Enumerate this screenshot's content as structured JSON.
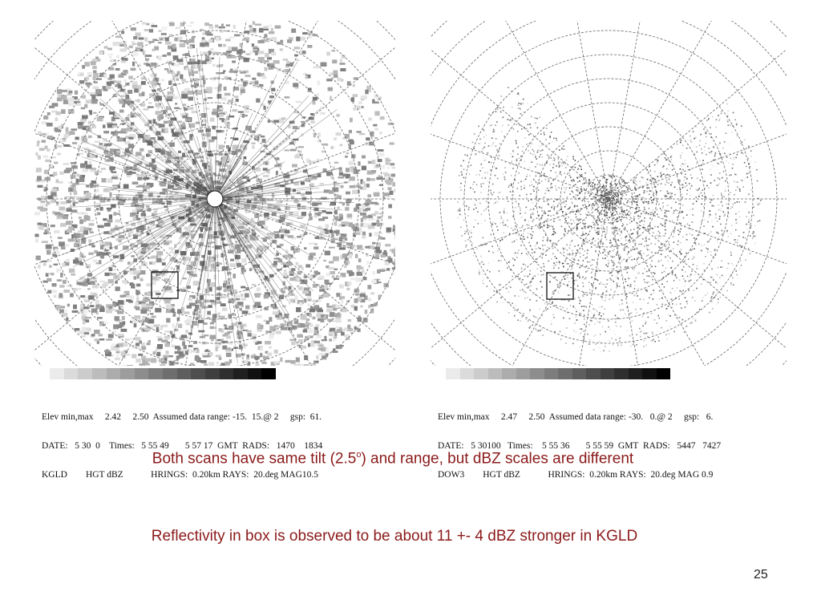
{
  "slide": {
    "page_number": "25",
    "note_1": {
      "before": "Both scans have same tilt (2.5",
      "sup": "o",
      "after": ") and range, but dBZ scales are different"
    },
    "note_2": "Reflectivity in box is observed to be about 11 +- 4 dBZ stronger in KGLD"
  },
  "left_panel": {
    "radar": "KGLD",
    "caption": [
      "Elev min,max     2.42     2.50  Assumed data range: -15.  15.@ 2     gsp:  61.",
      "DATE:   5 30  0    Times:   5 55 49       5 57 17  GMT  RADS:   1470    1834",
      "KGLD        HGT dBZ            HRINGS:  0.20km RAYS:  20.deg MAG10.5"
    ]
  },
  "right_panel": {
    "radar": "DOW3",
    "caption": [
      "Elev min,max     2.47     2.50  Assumed data range: -30.   0.@ 2     gsp:   6.",
      "DATE:   5 30100   Times:    5 55 36       5 55 59  GMT  RADS:   5447   7427",
      "DOW3        HGT dBZ            HRINGS:  0.20km RAYS:  20.deg MAG 0.9"
    ]
  },
  "colors": {
    "note_text": "#8b1a1a",
    "grid": "#666666"
  }
}
